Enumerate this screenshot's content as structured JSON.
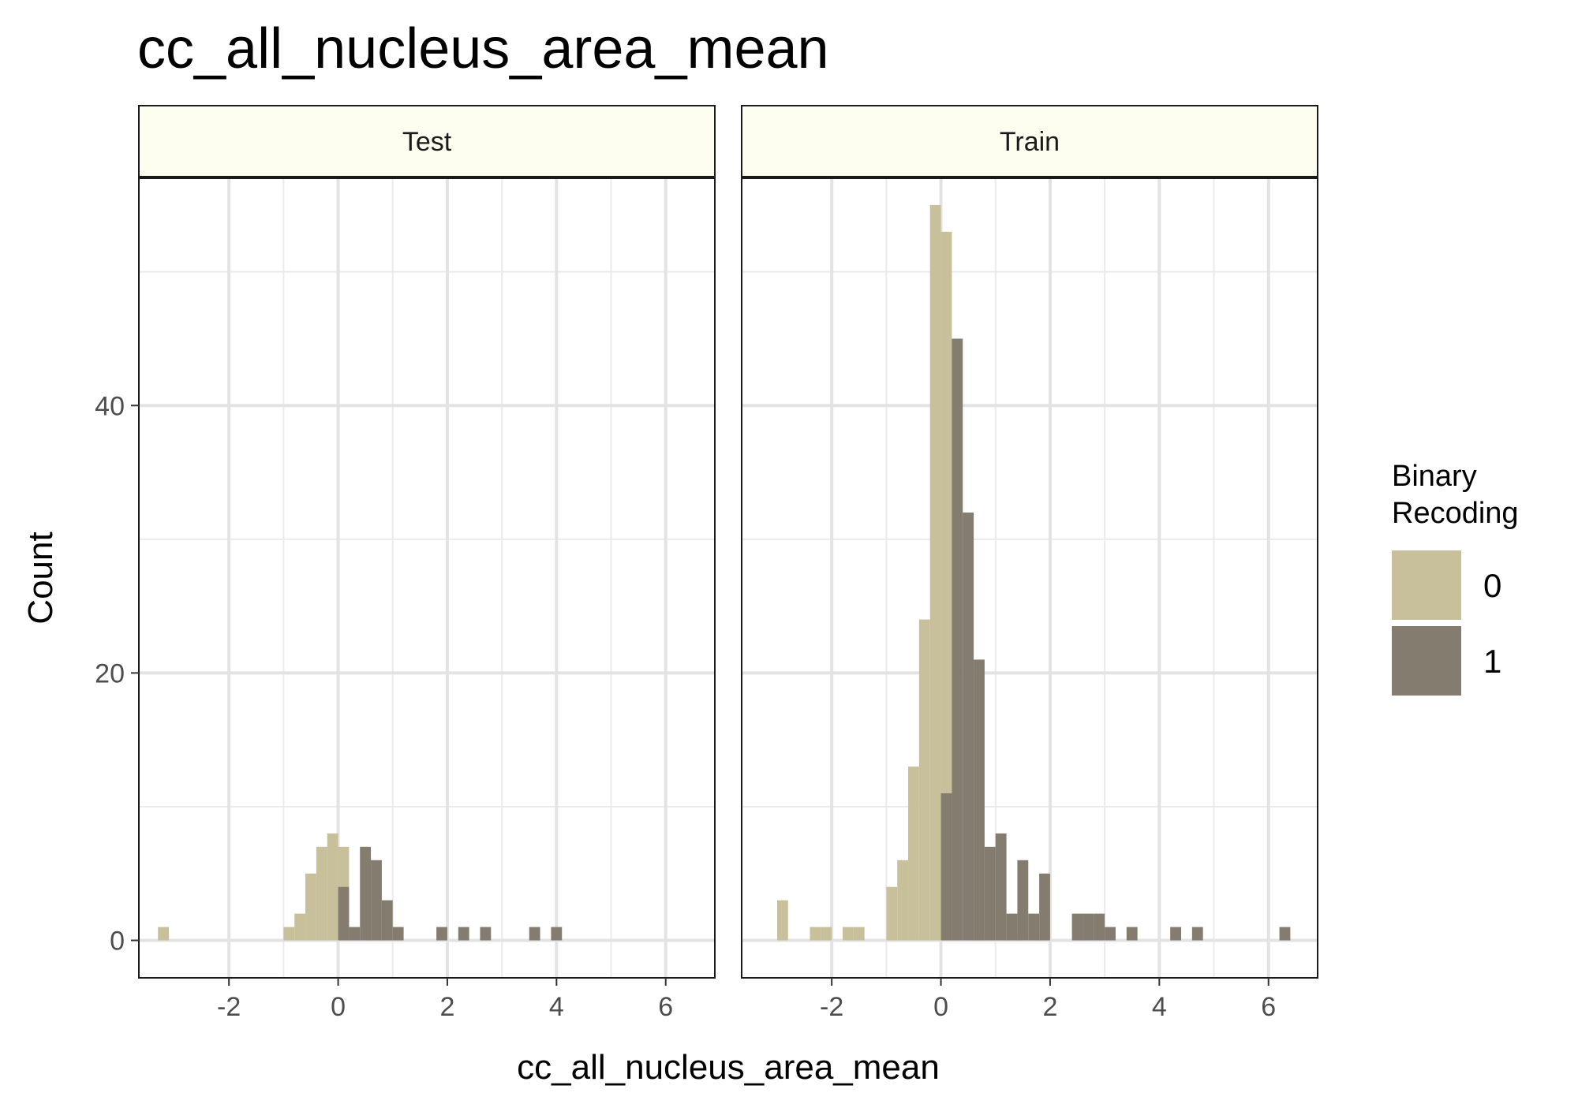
{
  "chart_data": {
    "type": "bar",
    "title": "cc_all_nucleus_area_mean",
    "xlabel": "cc_all_nucleus_area_mean",
    "ylabel": "Count",
    "xlim": [
      -3.65,
      6.9
    ],
    "ylim": [
      -2.8,
      57
    ],
    "x_ticks": [
      -2,
      0,
      2,
      4,
      6
    ],
    "x_tick_labels": [
      "-2",
      "0",
      "2",
      "4",
      "6"
    ],
    "y_ticks": [
      0,
      20,
      40
    ],
    "y_tick_labels": [
      "0",
      "20",
      "40"
    ],
    "bin_width": 0.2,
    "grid": true,
    "legend": {
      "title_lines": [
        "Binary",
        "Recoding"
      ],
      "placement": "right",
      "items": [
        {
          "label": "0",
          "color": "#c8c09a"
        },
        {
          "label": "1",
          "color": "#857c70"
        }
      ]
    },
    "colors": {
      "0": "#c8c09a",
      "1": "#857c70"
    },
    "panels": [
      {
        "strip_label": "Test",
        "strip_color": "#fdfeef",
        "series": [
          {
            "name": "0",
            "bins": [
              [
                -3.3,
                1
              ],
              [
                -1.0,
                1
              ],
              [
                -0.8,
                2
              ],
              [
                -0.6,
                5
              ],
              [
                -0.4,
                7
              ],
              [
                -0.2,
                8
              ],
              [
                0.0,
                7
              ]
            ]
          },
          {
            "name": "1",
            "bins": [
              [
                0.0,
                4
              ],
              [
                0.2,
                1
              ],
              [
                0.4,
                7
              ],
              [
                0.6,
                6
              ],
              [
                0.8,
                3
              ],
              [
                1.0,
                1
              ],
              [
                1.8,
                1
              ],
              [
                2.2,
                1
              ],
              [
                2.6,
                1
              ],
              [
                3.5,
                1
              ],
              [
                3.9,
                1
              ]
            ]
          }
        ]
      },
      {
        "strip_label": "Train",
        "strip_color": "#fdfeef",
        "series": [
          {
            "name": "0",
            "bins": [
              [
                -3.0,
                3
              ],
              [
                -2.4,
                1
              ],
              [
                -2.2,
                1
              ],
              [
                -1.8,
                1
              ],
              [
                -1.6,
                1
              ],
              [
                -1.0,
                4
              ],
              [
                -0.8,
                6
              ],
              [
                -0.6,
                13
              ],
              [
                -0.4,
                24
              ],
              [
                -0.2,
                55
              ],
              [
                0.0,
                53
              ]
            ]
          },
          {
            "name": "1",
            "bins": [
              [
                0.0,
                11
              ],
              [
                0.2,
                45
              ],
              [
                0.4,
                32
              ],
              [
                0.6,
                21
              ],
              [
                0.8,
                7
              ],
              [
                1.0,
                8
              ],
              [
                1.2,
                2
              ],
              [
                1.4,
                6
              ],
              [
                1.6,
                2
              ],
              [
                1.8,
                5
              ],
              [
                2.4,
                2
              ],
              [
                2.6,
                2
              ],
              [
                2.8,
                2
              ],
              [
                3.0,
                1
              ],
              [
                3.4,
                1
              ],
              [
                4.2,
                1
              ],
              [
                4.6,
                1
              ],
              [
                6.2,
                1
              ]
            ]
          }
        ]
      }
    ]
  }
}
